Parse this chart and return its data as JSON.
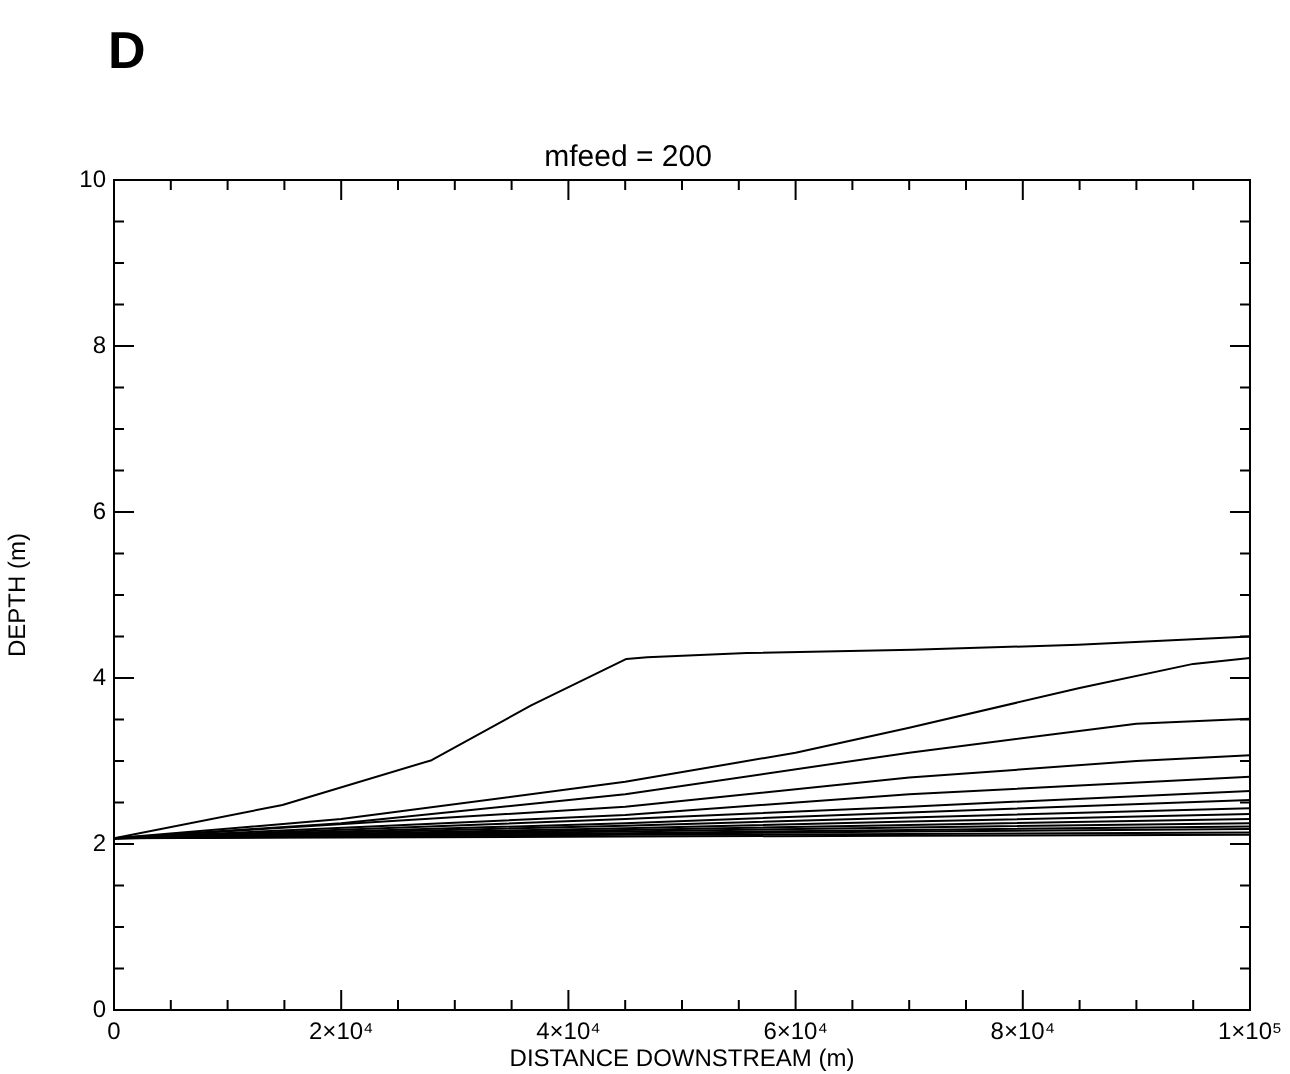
{
  "chart_data": {
    "type": "line",
    "title": "mfeed = 200",
    "xlabel": "DISTANCE DOWNSTREAM (m)",
    "ylabel": "DEPTH (m)",
    "annotations": [
      "D"
    ],
    "xlim": [
      0,
      100000
    ],
    "ylim": [
      0,
      10
    ],
    "xticks": [
      0,
      {
        "value": 5000,
        "label": null
      },
      {
        "value": 10000,
        "label": null
      },
      {
        "value": 15000,
        "label": null
      },
      {
        "value": 20000,
        "label": "2×10⁴"
      },
      {
        "value": 25000,
        "label": null
      },
      {
        "value": 30000,
        "label": null
      },
      {
        "value": 35000,
        "label": null
      },
      {
        "value": 40000,
        "label": "4×10⁴"
      },
      {
        "value": 45000,
        "label": null
      },
      {
        "value": 50000,
        "label": null
      },
      {
        "value": 55000,
        "label": null
      },
      {
        "value": 60000,
        "label": "6×10⁴"
      },
      {
        "value": 65000,
        "label": null
      },
      {
        "value": 70000,
        "label": null
      },
      {
        "value": 75000,
        "label": null
      },
      {
        "value": 80000,
        "label": "8×10⁴"
      },
      {
        "value": 85000,
        "label": null
      },
      {
        "value": 90000,
        "label": null
      },
      {
        "value": 95000,
        "label": null
      },
      {
        "value": 100000,
        "label": "1×10⁵"
      }
    ],
    "yticks": [
      0,
      {
        "value": 0.5,
        "label": null
      },
      {
        "value": 1,
        "label": null
      },
      {
        "value": 1.5,
        "label": null
      },
      2,
      {
        "value": 2.5,
        "label": null
      },
      {
        "value": 3,
        "label": null
      },
      {
        "value": 3.5,
        "label": null
      },
      4,
      {
        "value": 4.5,
        "label": null
      },
      {
        "value": 5,
        "label": null
      },
      {
        "value": 5.5,
        "label": null
      },
      6,
      {
        "value": 6.5,
        "label": null
      },
      {
        "value": 7,
        "label": null
      },
      {
        "value": 7.5,
        "label": null
      },
      8,
      {
        "value": 8.5,
        "label": null
      },
      {
        "value": 9,
        "label": null
      },
      {
        "value": 9.5,
        "label": null
      },
      10
    ],
    "grid": false,
    "legend": false,
    "marker": "none",
    "line_style": "solid",
    "series": [
      {
        "color": "#000000",
        "x": [
          0,
          14830,
          27960,
          36720,
          45110,
          46940,
          55700,
          70280,
          84880,
          100000
        ],
        "values": [
          2.07,
          2.47,
          3.01,
          3.67,
          4.23,
          4.25,
          4.3,
          4.34,
          4.4,
          4.5
        ]
      },
      {
        "color": "#000000",
        "x": [
          0,
          20000,
          45000,
          60000,
          70000,
          85000,
          95000,
          100000
        ],
        "values": [
          2.07,
          2.3,
          2.75,
          3.1,
          3.4,
          3.88,
          4.17,
          4.24
        ]
      },
      {
        "color": "#000000",
        "x": [
          0,
          20000,
          45000,
          70000,
          90000,
          100000
        ],
        "values": [
          2.07,
          2.25,
          2.6,
          3.1,
          3.45,
          3.51
        ]
      },
      {
        "color": "#000000",
        "x": [
          0,
          45000,
          70000,
          90000,
          100000
        ],
        "values": [
          2.07,
          2.45,
          2.8,
          3.0,
          3.07
        ]
      },
      {
        "color": "#000000",
        "x": [
          0,
          45000,
          70000,
          100000
        ],
        "values": [
          2.07,
          2.35,
          2.6,
          2.81
        ]
      },
      {
        "color": "#000000",
        "x": [
          0,
          45000,
          70000,
          100000
        ],
        "values": [
          2.07,
          2.3,
          2.45,
          2.64
        ]
      },
      {
        "color": "#000000",
        "x": [
          0,
          45000,
          70000,
          100000
        ],
        "values": [
          2.07,
          2.25,
          2.38,
          2.53
        ]
      },
      {
        "color": "#000000",
        "x": [
          0,
          45000,
          70000,
          100000
        ],
        "values": [
          2.07,
          2.22,
          2.32,
          2.43
        ]
      },
      {
        "color": "#000000",
        "x": [
          0,
          45000,
          70000,
          100000
        ],
        "values": [
          2.07,
          2.19,
          2.27,
          2.36
        ]
      },
      {
        "color": "#000000",
        "x": [
          0,
          45000,
          70000,
          100000
        ],
        "values": [
          2.07,
          2.17,
          2.23,
          2.3
        ]
      },
      {
        "color": "#000000",
        "x": [
          0,
          45000,
          70000,
          100000
        ],
        "values": [
          2.07,
          2.15,
          2.2,
          2.25
        ]
      },
      {
        "color": "#000000",
        "x": [
          0,
          45000,
          70000,
          100000
        ],
        "values": [
          2.07,
          2.13,
          2.17,
          2.21
        ]
      },
      {
        "color": "#000000",
        "x": [
          0,
          45000,
          70000,
          100000
        ],
        "values": [
          2.07,
          2.12,
          2.15,
          2.18
        ]
      },
      {
        "color": "#000000",
        "x": [
          0,
          45000,
          70000,
          100000
        ],
        "values": [
          2.07,
          2.11,
          2.12,
          2.14
        ]
      },
      {
        "color": "#000000",
        "x": [
          0,
          45000,
          70000,
          100000
        ],
        "values": [
          2.07,
          2.09,
          2.1,
          2.11
        ]
      }
    ]
  }
}
